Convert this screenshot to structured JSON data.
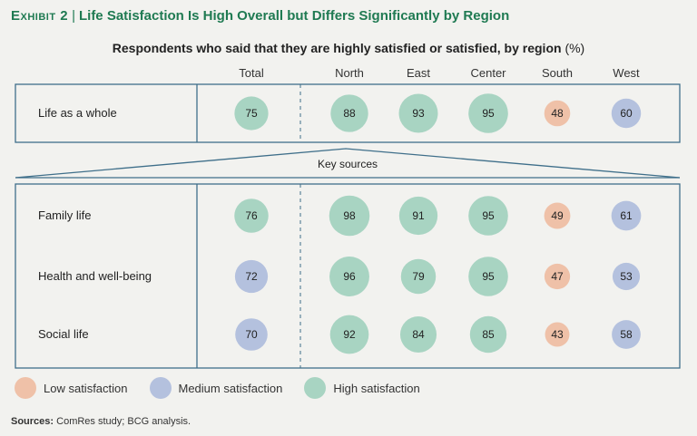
{
  "header": {
    "exhibit_label": "Exhibit 2",
    "separator": "|",
    "title": "Life Satisfaction Is High Overall but Differs Significantly by Region",
    "subtitle": "Respondents who said that they are highly satisfied or satisfied, by region",
    "subtitle_unit": "(%)"
  },
  "colors": {
    "low": "#efc1a8",
    "medium": "#b4c1de",
    "high": "#a8d4c2",
    "frame": "#3f6f8a",
    "title": "#1f7a52"
  },
  "chart_data": {
    "type": "table",
    "columns": [
      "Total",
      "North",
      "East",
      "Center",
      "South",
      "West"
    ],
    "top_section": {
      "rows": [
        {
          "label": "Life as a whole",
          "values": [
            75,
            88,
            93,
            95,
            48,
            60
          ]
        }
      ]
    },
    "connector_label": "Key sources",
    "bottom_section": {
      "rows": [
        {
          "label": "Family life",
          "values": [
            76,
            98,
            91,
            95,
            49,
            61
          ]
        },
        {
          "label": "Health and well-being",
          "values": [
            72,
            96,
            79,
            95,
            47,
            53
          ]
        },
        {
          "label": "Social life",
          "values": [
            70,
            92,
            84,
            85,
            43,
            58
          ]
        }
      ]
    },
    "categories": [
      {
        "key": "low",
        "label": "Low satisfaction"
      },
      {
        "key": "medium",
        "label": "Medium satisfaction"
      },
      {
        "key": "high",
        "label": "High satisfaction"
      }
    ],
    "category_of_cells": {
      "top": [
        [
          "high",
          "high",
          "high",
          "high",
          "low",
          "medium"
        ]
      ],
      "bottom": [
        [
          "high",
          "high",
          "high",
          "high",
          "low",
          "medium"
        ],
        [
          "medium",
          "high",
          "high",
          "high",
          "low",
          "medium"
        ],
        [
          "medium",
          "high",
          "high",
          "high",
          "low",
          "medium"
        ]
      ]
    }
  },
  "legend": {
    "low": "Low satisfaction",
    "medium": "Medium satisfaction",
    "high": "High satisfaction"
  },
  "footer": {
    "sources_label": "Sources:",
    "sources_text": "ComRes study; BCG analysis."
  }
}
